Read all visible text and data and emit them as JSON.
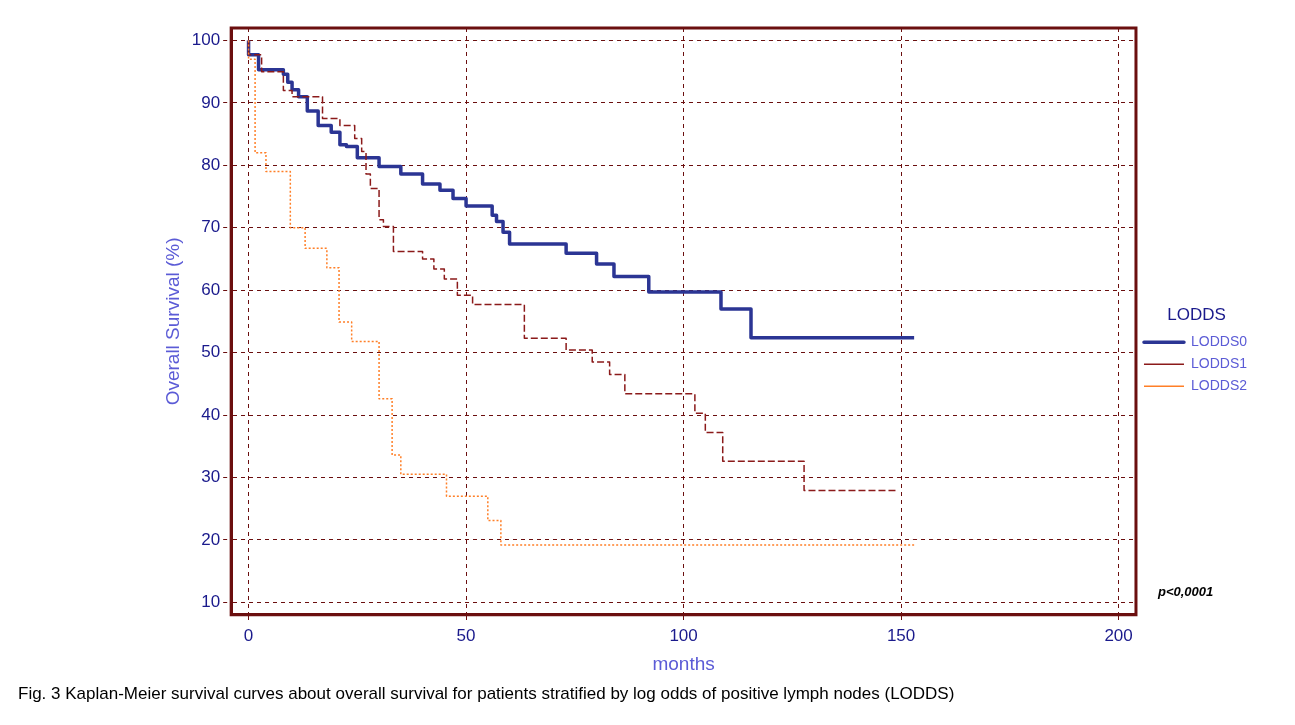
{
  "chart_data": {
    "type": "step",
    "xlabel": "months",
    "ylabel": "Overall Survival (%)",
    "legend_title": "LODDS",
    "legend": "right",
    "grid": true,
    "xlim": [
      -4,
      204
    ],
    "xticks": [
      0,
      50,
      100,
      150,
      200
    ],
    "ylim": [
      8,
      102
    ],
    "yticks": [
      10,
      20,
      30,
      40,
      50,
      60,
      70,
      80,
      90,
      100
    ],
    "annotations": [
      "p<0,0001",
      "Fig. 3 Kaplan-Meier survival curves about overall survival for patients stratified by log odds of positive lymph nodes (LODDS)"
    ],
    "series": [
      {
        "name": "LODDS0",
        "color": "#2b3594",
        "line_style": "solid",
        "x": [
          0,
          2.3,
          8,
          9,
          10,
          11.5,
          13.5,
          16,
          19,
          21,
          22.5,
          25,
          30,
          35,
          40,
          44,
          47,
          50,
          56,
          57,
          58.5,
          60,
          73,
          80,
          84,
          92,
          108.6,
          115.5,
          132,
          153
        ],
        "values": [
          100,
          97.7,
          95.3,
          94.6,
          93.3,
          92.1,
          91,
          88.7,
          86.4,
          85.3,
          83.3,
          83,
          81.2,
          79.8,
          78.6,
          77,
          76,
          74.7,
          73.5,
          72,
          71,
          69.3,
          67.4,
          65.9,
          64.2,
          62.2,
          59.7,
          57,
          52.4,
          52.4
        ]
      },
      {
        "name": "LODDS1",
        "color": "#8b1a1a",
        "line_style": "dashed",
        "x": [
          0,
          3,
          8,
          10,
          17,
          21,
          24.4,
          26,
          27,
          28,
          30,
          31,
          33.3,
          40,
          42.6,
          45,
          48,
          51.5,
          63.4,
          73,
          79,
          83,
          86.5,
          102.6,
          105,
          109,
          127.7,
          129.7,
          149
        ],
        "values": [
          100,
          97.7,
          95,
          92,
          91,
          87.5,
          86.4,
          84.3,
          82.2,
          78.6,
          76.3,
          71.3,
          70.2,
          66.2,
          65,
          63.4,
          61.8,
          59.2,
          57.7,
          52.3,
          50.4,
          48.5,
          46.5,
          43.4,
          40.3,
          37.2,
          32.6,
          27.9,
          27.9
        ]
      },
      {
        "name": "LODDS2",
        "color": "#ff7f27",
        "line_style": "dotted",
        "x": [
          0,
          1.5,
          4,
          9.6,
          13,
          18,
          20.8,
          23.7,
          30,
          33,
          35,
          45.5,
          55,
          58,
          77.6,
          153
        ],
        "values": [
          100,
          97,
          82,
          79,
          70,
          66.7,
          63.6,
          54.9,
          51.8,
          42.6,
          33.6,
          30.5,
          27,
          23.1,
          19.2,
          19.2
        ]
      }
    ]
  }
}
